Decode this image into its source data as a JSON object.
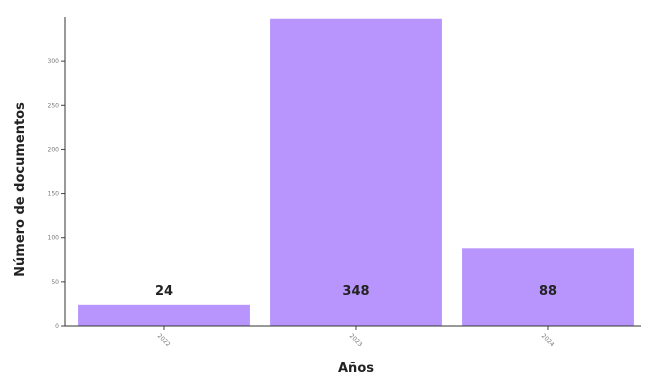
{
  "chart_data": {
    "type": "bar",
    "categories": [
      "2022",
      "2023",
      "2024"
    ],
    "values": [
      24,
      348,
      88
    ],
    "xlabel": "Años",
    "ylabel": "Número de documentos",
    "ylim": [
      0,
      350
    ],
    "yticks": [
      0,
      50,
      100,
      150,
      200,
      250,
      300
    ],
    "grid": false,
    "legend": "none",
    "colors": {
      "bar": "#b795fd",
      "text": "#222222",
      "axis": "#333333"
    }
  }
}
